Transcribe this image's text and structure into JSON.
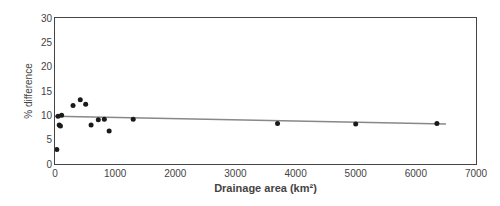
{
  "chart_data": {
    "type": "scatter",
    "xlabel": "Drainage area (km²)",
    "ylabel": "% difference",
    "xlim": [
      0,
      7000
    ],
    "ylim": [
      0,
      30
    ],
    "xticks": [
      0,
      1000,
      2000,
      3000,
      4000,
      5000,
      6000,
      7000
    ],
    "yticks": [
      0,
      5,
      10,
      15,
      20,
      25,
      30
    ],
    "grid": false,
    "series": [
      {
        "type": "line",
        "color": "#888888",
        "x": [
          0,
          6500
        ],
        "values": [
          9.8,
          8.2
        ]
      },
      {
        "type": "scatter",
        "color": "#1a1a1a",
        "x": [
          30,
          50,
          70,
          90,
          110,
          300,
          420,
          510,
          600,
          720,
          820,
          900,
          1300,
          3700,
          5000,
          6350
        ],
        "values": [
          3.0,
          9.8,
          8.0,
          7.8,
          10.0,
          12.0,
          13.2,
          12.3,
          8.0,
          9.1,
          9.2,
          6.8,
          9.2,
          8.3,
          8.2,
          8.3
        ]
      }
    ]
  }
}
